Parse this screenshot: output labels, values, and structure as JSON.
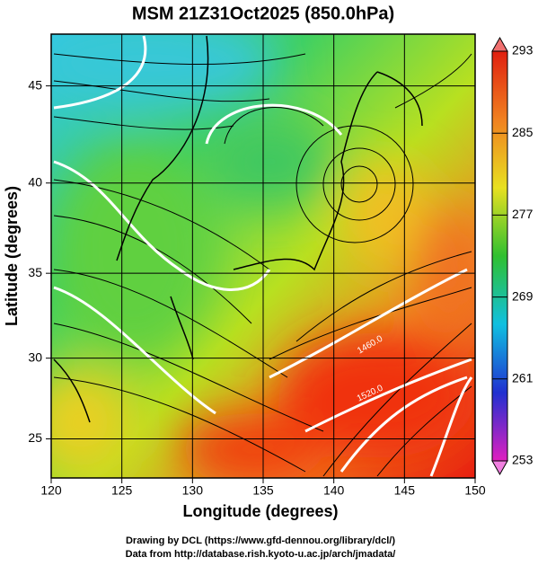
{
  "chart_data": {
    "type": "map",
    "title": "MSM 21Z31Oct2025 (850.0hPa)",
    "x_label": "Longitude (degrees)",
    "y_label": "Latitude  (degrees)",
    "xlim": [
      120,
      150
    ],
    "xticks": [
      120,
      125,
      130,
      135,
      140,
      145,
      150
    ],
    "ylim": [
      22.5,
      47.5
    ],
    "yticks": [
      25,
      30,
      35,
      40,
      45
    ],
    "projection": "mercator",
    "grid": true,
    "colorbar": {
      "lim": [
        253,
        293
      ],
      "ticks": [
        253,
        261,
        269,
        277,
        285,
        293
      ],
      "colors": [
        "#e020c0",
        "#2030d0",
        "#10c0e0",
        "#30c030",
        "#e8e020",
        "#f08020",
        "#e02010"
      ]
    },
    "annotations": [
      "1460.0",
      "1520.0"
    ]
  },
  "footer": [
    "Drawing by DCL (https://www.gfd-dennou.org/library/dcl/)",
    "Data from http://database.rish.kyoto-u.ac.jp/arch/jmadata/"
  ]
}
